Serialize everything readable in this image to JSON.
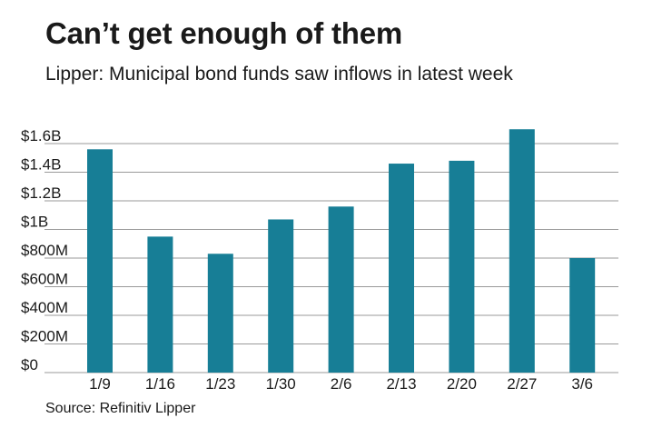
{
  "header": {
    "title": "Can’t get enough of them",
    "subtitle": "Lipper: Municipal bond funds saw inflows in latest week"
  },
  "footer": {
    "source": "Source: Refinitiv Lipper"
  },
  "colors": {
    "bar": "#177e96",
    "grid": "#9a9a9a",
    "text": "#1a1a1a"
  },
  "chart_data": {
    "type": "bar",
    "title": "Can’t get enough of them",
    "subtitle": "Lipper: Municipal bond funds saw inflows in latest week",
    "xlabel": "",
    "ylabel": "",
    "units": "USD millions",
    "categories": [
      "1/9",
      "1/16",
      "1/23",
      "1/30",
      "2/6",
      "2/13",
      "2/20",
      "2/27",
      "3/6"
    ],
    "values": [
      1560,
      950,
      830,
      1070,
      1160,
      1460,
      1480,
      1700,
      800
    ],
    "ylim": [
      0,
      1600
    ],
    "yticks": [
      0,
      200,
      400,
      600,
      800,
      1000,
      1200,
      1400,
      1600
    ],
    "ytick_labels": [
      "$0",
      "$200M",
      "$400M",
      "$600M",
      "$800M",
      "$1B",
      "$1.2B",
      "$1.4B",
      "$1.6B"
    ],
    "grid": true,
    "legend": "none"
  }
}
